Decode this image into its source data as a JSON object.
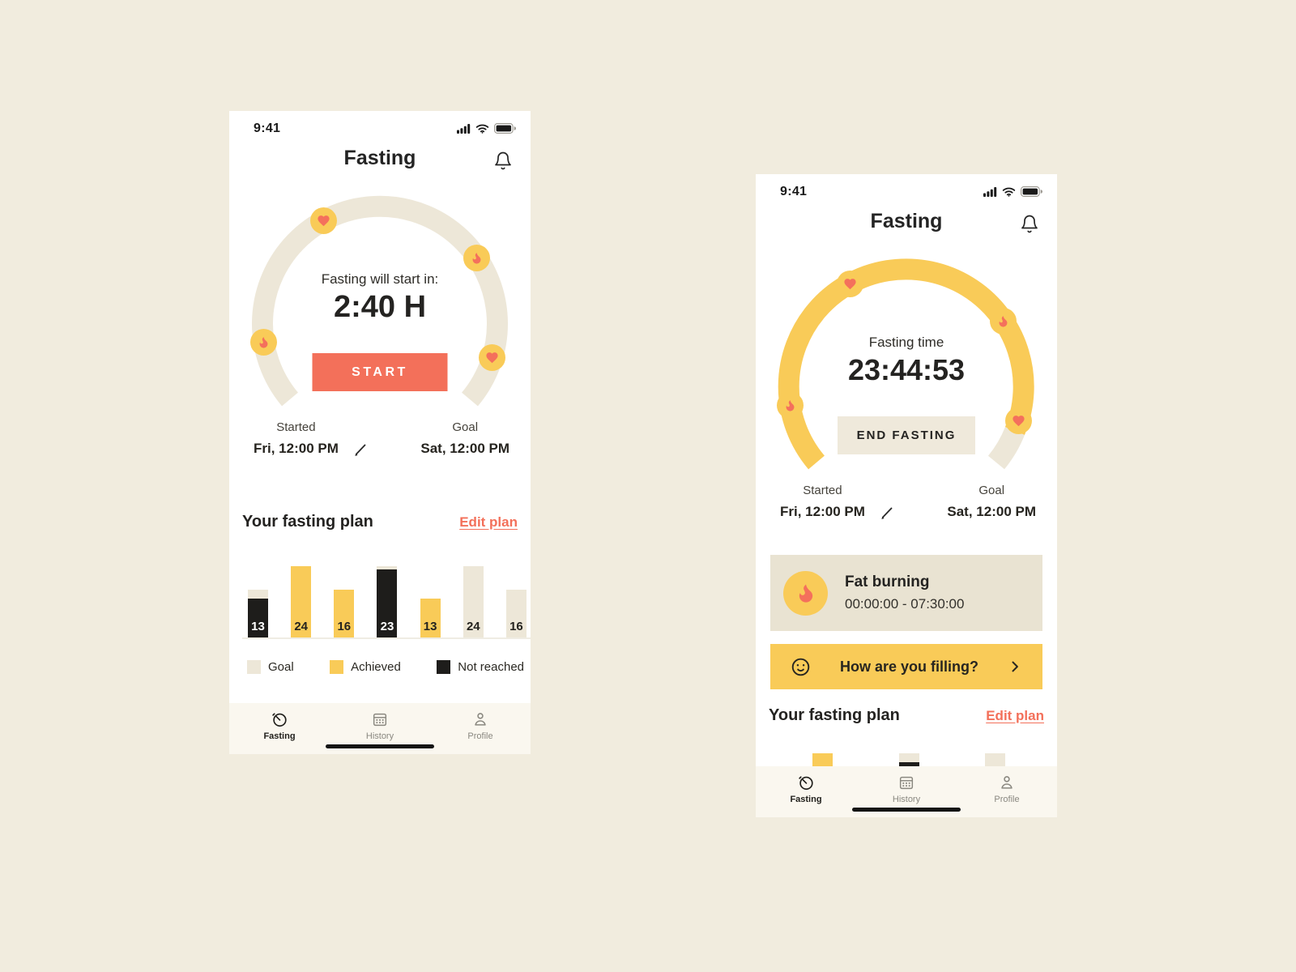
{
  "colors": {
    "page_bg": "#F1ECDE",
    "accent_coral": "#F3705A",
    "accent_yellow": "#F9CB58",
    "beige_arc": "#EDE7D8",
    "beige_card": "#E9E3D2",
    "beige_button": "#EFE9DB",
    "tabbar_bg": "#FAF7EF",
    "bar_black": "#1E1D1B"
  },
  "status_bar": {
    "time": "9:41",
    "icons": [
      "cellular-signal",
      "wifi",
      "battery"
    ]
  },
  "tab_bar": {
    "items": [
      {
        "label": "Fasting",
        "icon": "timer",
        "active": true
      },
      {
        "label": "History",
        "icon": "calendar",
        "active": false
      },
      {
        "label": "Profile",
        "icon": "person",
        "active": false
      }
    ]
  },
  "screens": {
    "left": {
      "title": "Fasting",
      "gauge": {
        "label": "Fasting will start in:",
        "time": "2:40 H",
        "action": "START",
        "progress": "not-started",
        "badges": [
          "heart",
          "flame",
          "flame",
          "heart"
        ]
      },
      "started": {
        "label": "Started",
        "value": "Fri, 12:00 PM"
      },
      "goal": {
        "label": "Goal",
        "value": "Sat, 12:00 PM"
      },
      "plan": {
        "title": "Your fasting plan",
        "edit": "Edit plan"
      }
    },
    "right": {
      "title": "Fasting",
      "gauge": {
        "label": "Fasting time",
        "time": "23:44:53",
        "action": "END FASTING",
        "progress": "almost-complete",
        "badges": [
          "heart",
          "flame",
          "flame",
          "heart"
        ]
      },
      "started": {
        "label": "Started",
        "value": "Fri, 12:00 PM"
      },
      "goal": {
        "label": "Goal",
        "value": "Sat, 12:00 PM"
      },
      "stage_card": {
        "icon": "flame",
        "title": "Fat burning",
        "range": "00:00:00 - 07:30:00"
      },
      "feeling_button": {
        "icon": "smiley",
        "label": "How are you filling?",
        "chevron": "right"
      },
      "plan": {
        "title": "Your fasting plan",
        "edit": "Edit plan"
      }
    }
  },
  "chart_data": {
    "type": "bar",
    "title": "Your fasting plan",
    "unit": "hours",
    "values": [
      13,
      24,
      16,
      23,
      13,
      24,
      16
    ],
    "goals": [
      16,
      24,
      16,
      24,
      13,
      24,
      16
    ],
    "status": [
      "not-reached",
      "achieved",
      "achieved",
      "not-reached",
      "achieved",
      "goal",
      "goal"
    ],
    "ymax": 24,
    "grid": false,
    "legend_position": "bottom",
    "legend": [
      {
        "label": "Goal",
        "color": "#EDE7D8"
      },
      {
        "label": "Achieved",
        "color": "#F9CB58"
      },
      {
        "label": "Not reached",
        "color": "#1E1D1B"
      }
    ],
    "right_screen_visible_bars": [
      {
        "status": "achieved"
      },
      {
        "status": "goal",
        "black_tip": true
      },
      {
        "status": "goal"
      }
    ]
  }
}
